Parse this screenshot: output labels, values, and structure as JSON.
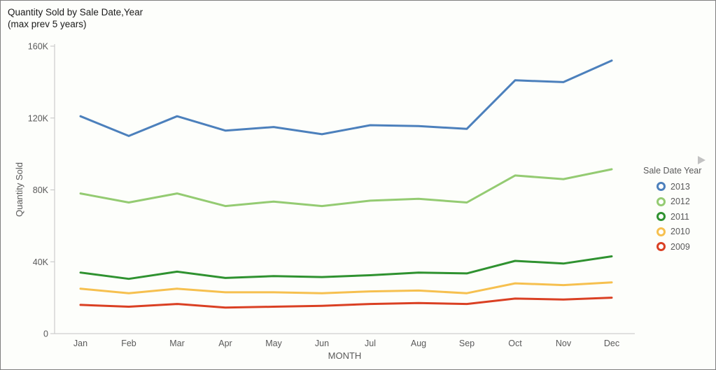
{
  "window": {
    "background": "#fdfefb",
    "border_color": "#7f7f7f"
  },
  "title": {
    "line1": "Quantity Sold by Sale Date,Year",
    "line2": "(max prev 5 years)"
  },
  "legend": {
    "title": "Sale Date Year",
    "expander_icon": "right-arrow",
    "marker_style": "open-circle"
  },
  "chart_data": {
    "type": "line",
    "title": "Quantity Sold by Sale Date,Year (max prev 5 years)",
    "xlabel": "MONTH",
    "ylabel": "Quantity Sold",
    "categories": [
      "Jan",
      "Feb",
      "Mar",
      "Apr",
      "May",
      "Jun",
      "Jul",
      "Aug",
      "Sep",
      "Oct",
      "Nov",
      "Dec"
    ],
    "ylim": [
      0,
      160000
    ],
    "y_ticks": [
      {
        "value": 160000,
        "label": "160K"
      },
      {
        "value": 120000,
        "label": "120K"
      },
      {
        "value": 80000,
        "label": "80K"
      },
      {
        "value": 40000,
        "label": "40K"
      },
      {
        "value": 0,
        "label": "0"
      }
    ],
    "grid": false,
    "legend_position": "right",
    "axis_color": "#c3c3c3",
    "text_color": "#595959",
    "series": [
      {
        "name": "2013",
        "color": "#4c80bc",
        "values": [
          121000,
          110000,
          121000,
          113000,
          115000,
          111000,
          116000,
          115500,
          114000,
          141000,
          140000,
          152000
        ]
      },
      {
        "name": "2012",
        "color": "#94cb72",
        "values": [
          78000,
          73000,
          78000,
          71000,
          73500,
          71000,
          74000,
          75000,
          73000,
          88000,
          86000,
          91500
        ]
      },
      {
        "name": "2011",
        "color": "#2f9230",
        "values": [
          34000,
          30500,
          34500,
          31000,
          32000,
          31500,
          32500,
          34000,
          33500,
          40500,
          39000,
          43000
        ]
      },
      {
        "name": "2010",
        "color": "#f6c04f",
        "values": [
          25000,
          22500,
          25000,
          23000,
          23000,
          22500,
          23500,
          24000,
          22500,
          28000,
          27000,
          28500
        ]
      },
      {
        "name": "2009",
        "color": "#da4023",
        "values": [
          16000,
          15000,
          16500,
          14500,
          15000,
          15500,
          16500,
          17000,
          16500,
          19500,
          19000,
          20000
        ]
      }
    ]
  }
}
